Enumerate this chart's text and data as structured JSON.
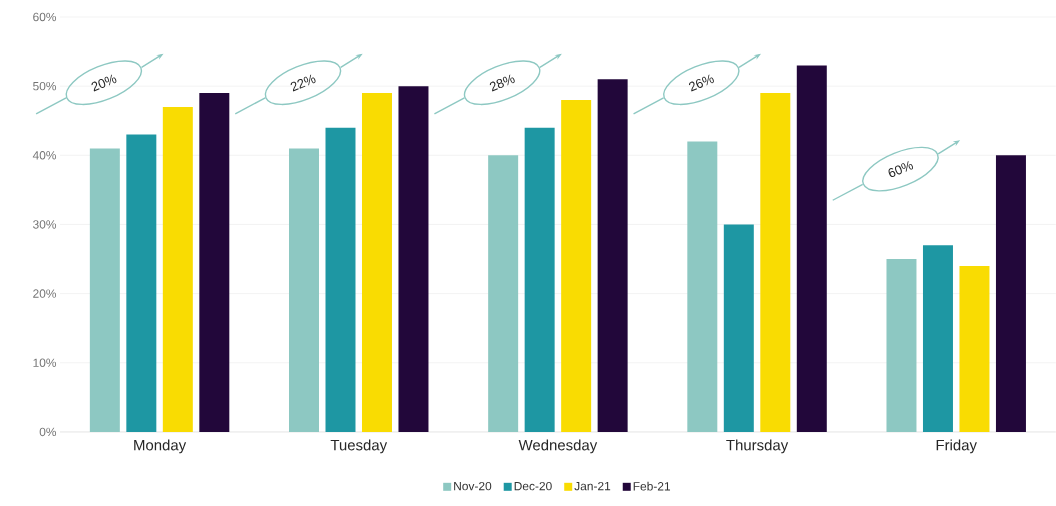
{
  "chart_data": {
    "type": "bar",
    "categories": [
      "Monday",
      "Tuesday",
      "Wednesday",
      "Thursday",
      "Friday"
    ],
    "series": [
      {
        "name": "Nov-20",
        "color": "#8dc8c2",
        "values": [
          41,
          41,
          40,
          42,
          25
        ]
      },
      {
        "name": "Dec-20",
        "color": "#1e97a3",
        "values": [
          43,
          44,
          44,
          30,
          27
        ]
      },
      {
        "name": "Jan-21",
        "color": "#f9dc02",
        "values": [
          47,
          49,
          48,
          49,
          24
        ]
      },
      {
        "name": "Feb-21",
        "color": "#22073a",
        "values": [
          49,
          50,
          51,
          53,
          40
        ]
      }
    ],
    "ylim": [
      0,
      60
    ],
    "yticks": [
      {
        "value": 0,
        "label": "0%"
      },
      {
        "value": 10,
        "label": "10%"
      },
      {
        "value": 20,
        "label": "20%"
      },
      {
        "value": 30,
        "label": "30%"
      },
      {
        "value": 40,
        "label": "40%"
      },
      {
        "value": 50,
        "label": "50%"
      },
      {
        "value": 60,
        "label": "60%"
      }
    ],
    "grid": "y",
    "legend": "bottom",
    "annotations": [
      "20%",
      "22%",
      "28%",
      "26%",
      "60%"
    ]
  }
}
